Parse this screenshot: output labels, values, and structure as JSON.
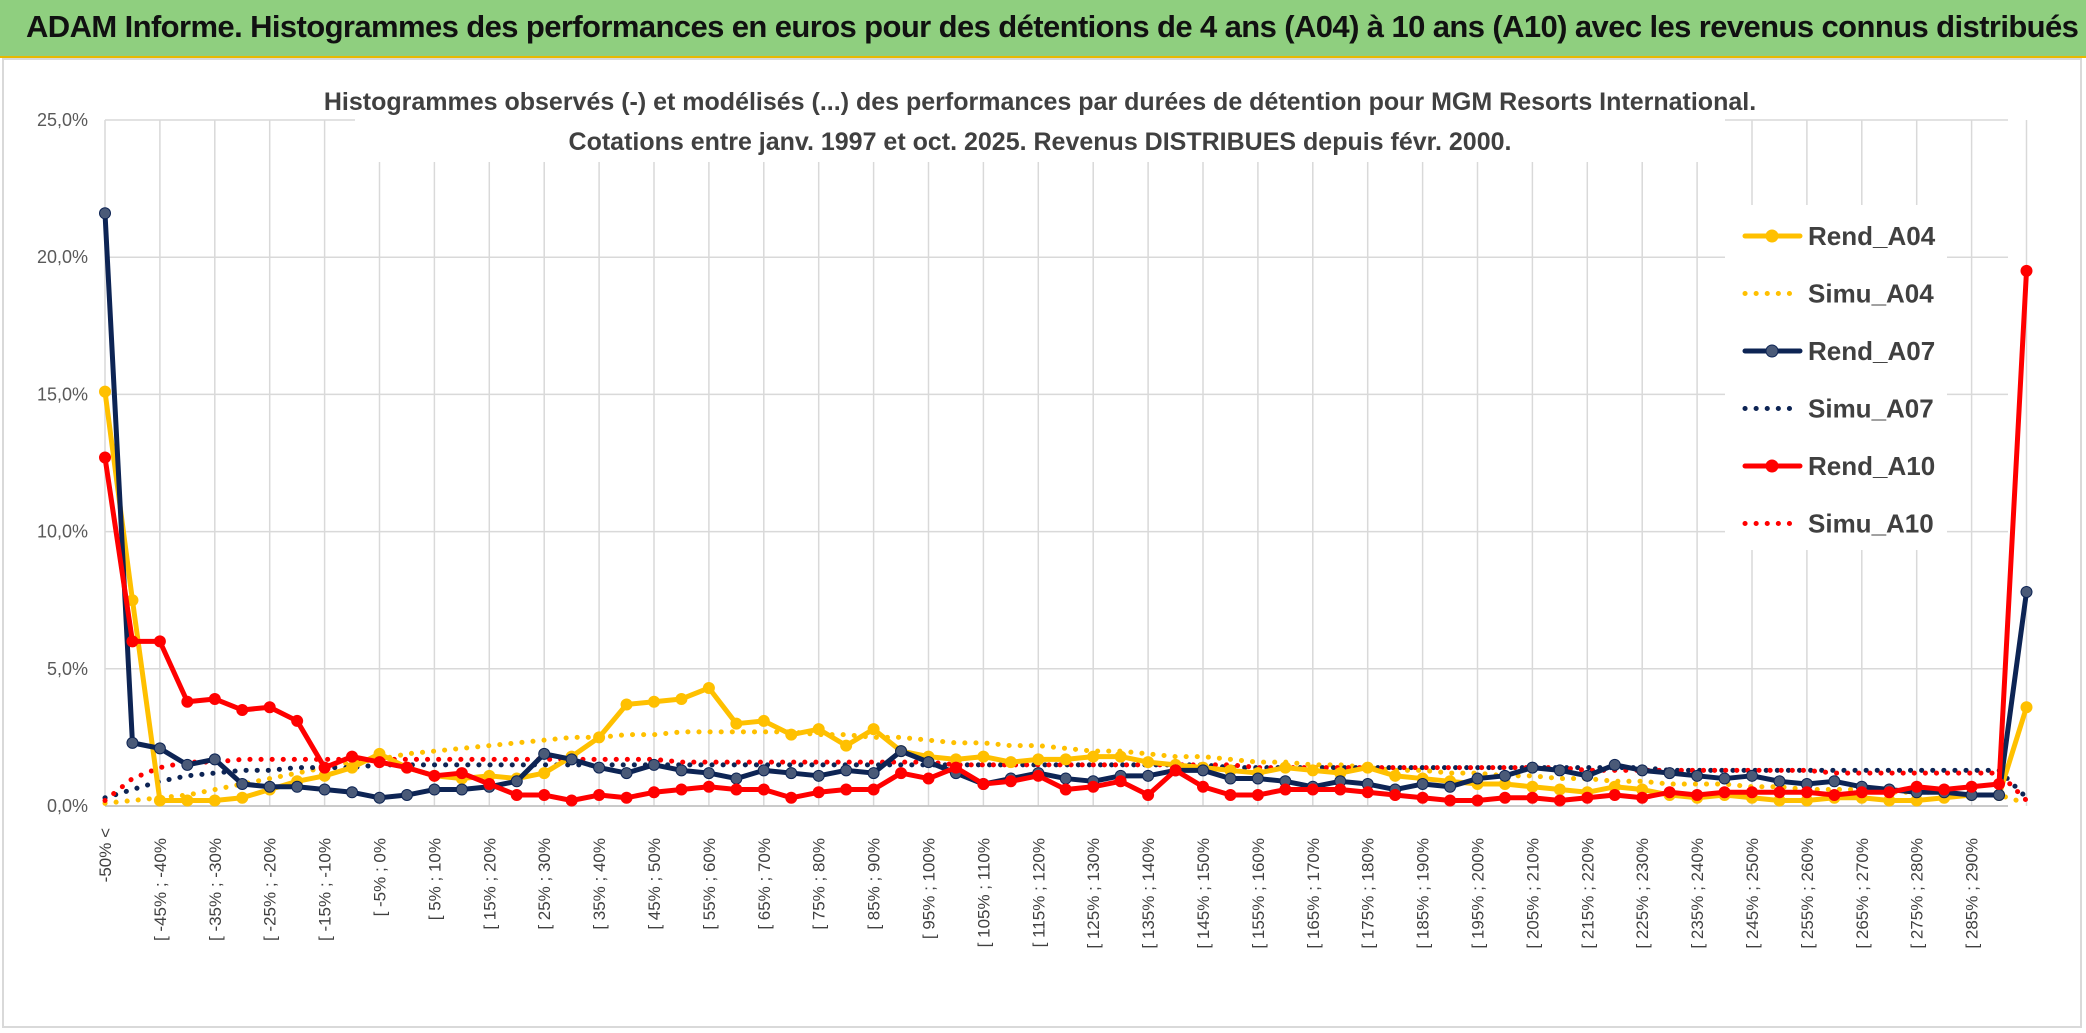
{
  "banner": {
    "title": "ADAM Informe. Histogrammes des performances en euros pour des détentions de 4 ans (A04) à 10 ans (A10) avec les revenus connus distribués"
  },
  "colors": {
    "banner_bg": "#8fcf7f",
    "a04": "#ffc000",
    "a07": "#0d2454",
    "a07_marker": "#4a5a78",
    "a10": "#ff0000",
    "grid": "#d9d9d9"
  },
  "chart_data": {
    "type": "line",
    "title": "Histogrammes observés (-) et modélisés (...) des performances par durées de détention pour MGM Resorts International.",
    "subtitle": "Cotations entre janv. 1997 et oct. 2025. Revenus DISTRIBUES depuis févr. 2000.",
    "y_ticks": [
      "0,0%",
      "5,0%",
      "10,0%",
      "15,0%",
      "20,0%",
      "25,0%"
    ],
    "ylim": [
      0,
      25
    ],
    "x_tick_labels": [
      "-50% <",
      "[ -45% ; -40%",
      "[ -35% ; -30%",
      "[ -25% ; -20%",
      "[ -15% ; -10%",
      "[ -5% ; 0%",
      "[ 5% ; 10%",
      "[ 15% ; 20%",
      "[ 25% ; 30%",
      "[ 35% ; 40%",
      "[ 45% ; 50%",
      "[ 55% ; 60%",
      "[ 65% ; 70%",
      "[ 75% ; 80%",
      "[ 85% ; 90%",
      "[ 95% ; 100%",
      "[ 105% ; 110%",
      "[ 115% ; 120%",
      "[ 125% ; 130%",
      "[ 135% ; 140%",
      "[ 145% ; 150%",
      "[ 155% ; 160%",
      "[ 165% ; 170%",
      "[ 175% ; 180%",
      "[ 185% ; 190%",
      "[ 195% ; 200%",
      "[ 205% ; 210%",
      "[ 215% ; 220%",
      "[ 225% ; 230%",
      "[ 235% ; 240%",
      "[ 245% ; 250%",
      "[ 255% ; 260%",
      "[ 265% ; 270%",
      "[ 275% ; 280%",
      "[ 285% ; 290%"
    ],
    "n_points": 71,
    "legend_position": "right",
    "grid": true,
    "series": [
      {
        "name": "Rend_A04",
        "style": "solid",
        "color": "#ffc000",
        "values": [
          15.1,
          7.5,
          0.2,
          0.2,
          0.2,
          0.3,
          0.6,
          0.9,
          1.1,
          1.4,
          1.9,
          1.4,
          1.1,
          1.0,
          1.1,
          1.0,
          1.2,
          1.8,
          2.5,
          3.7,
          3.8,
          3.9,
          4.3,
          3.0,
          3.1,
          2.6,
          2.8,
          2.2,
          2.8,
          2.0,
          1.8,
          1.7,
          1.8,
          1.6,
          1.7,
          1.7,
          1.8,
          1.8,
          1.6,
          1.5,
          1.4,
          1.3,
          1.2,
          1.4,
          1.3,
          1.2,
          1.4,
          1.1,
          1.0,
          0.9,
          0.8,
          0.8,
          0.7,
          0.6,
          0.5,
          0.7,
          0.6,
          0.4,
          0.3,
          0.4,
          0.3,
          0.2,
          0.2,
          0.3,
          0.3,
          0.2,
          0.2,
          0.3,
          0.4,
          0.4,
          3.6
        ]
      },
      {
        "name": "Simu_A04",
        "style": "dotted",
        "color": "#ffc000",
        "values": [
          0.1,
          0.2,
          0.3,
          0.4,
          0.6,
          0.8,
          1.0,
          1.2,
          1.4,
          1.6,
          1.7,
          1.9,
          2.0,
          2.1,
          2.2,
          2.3,
          2.4,
          2.5,
          2.5,
          2.6,
          2.6,
          2.7,
          2.7,
          2.7,
          2.7,
          2.7,
          2.6,
          2.6,
          2.5,
          2.5,
          2.4,
          2.3,
          2.3,
          2.2,
          2.2,
          2.1,
          2.0,
          2.0,
          1.9,
          1.8,
          1.8,
          1.7,
          1.6,
          1.6,
          1.5,
          1.5,
          1.4,
          1.3,
          1.3,
          1.2,
          1.2,
          1.1,
          1.1,
          1.0,
          1.0,
          0.9,
          0.9,
          0.8,
          0.8,
          0.8,
          0.7,
          0.7,
          0.6,
          0.6,
          0.6,
          0.5,
          0.5,
          0.5,
          0.4,
          0.4,
          0.1
        ]
      },
      {
        "name": "Rend_A07",
        "style": "solid",
        "color": "#0d2454",
        "values": [
          21.6,
          2.3,
          2.1,
          1.5,
          1.7,
          0.8,
          0.7,
          0.7,
          0.6,
          0.5,
          0.3,
          0.4,
          0.6,
          0.6,
          0.7,
          0.9,
          1.9,
          1.7,
          1.4,
          1.2,
          1.5,
          1.3,
          1.2,
          1.0,
          1.3,
          1.2,
          1.1,
          1.3,
          1.2,
          2.0,
          1.6,
          1.2,
          0.8,
          1.0,
          1.2,
          1.0,
          0.9,
          1.1,
          1.1,
          1.3,
          1.3,
          1.0,
          1.0,
          0.9,
          0.7,
          0.9,
          0.8,
          0.6,
          0.8,
          0.7,
          1.0,
          1.1,
          1.4,
          1.3,
          1.1,
          1.5,
          1.3,
          1.2,
          1.1,
          1.0,
          1.1,
          0.9,
          0.8,
          0.9,
          0.7,
          0.6,
          0.5,
          0.5,
          0.4,
          0.4,
          7.8
        ]
      },
      {
        "name": "Simu_A07",
        "style": "dotted",
        "color": "#0d2454",
        "values": [
          0.3,
          0.6,
          0.9,
          1.1,
          1.2,
          1.3,
          1.3,
          1.4,
          1.4,
          1.4,
          1.5,
          1.5,
          1.5,
          1.5,
          1.5,
          1.5,
          1.5,
          1.5,
          1.5,
          1.5,
          1.5,
          1.5,
          1.5,
          1.5,
          1.5,
          1.5,
          1.5,
          1.5,
          1.5,
          1.5,
          1.5,
          1.5,
          1.5,
          1.5,
          1.5,
          1.5,
          1.5,
          1.5,
          1.5,
          1.5,
          1.5,
          1.4,
          1.4,
          1.4,
          1.4,
          1.4,
          1.4,
          1.4,
          1.4,
          1.4,
          1.4,
          1.4,
          1.4,
          1.4,
          1.4,
          1.4,
          1.4,
          1.3,
          1.3,
          1.3,
          1.3,
          1.3,
          1.3,
          1.3,
          1.3,
          1.3,
          1.3,
          1.3,
          1.3,
          1.3,
          0.3
        ]
      },
      {
        "name": "Rend_A10",
        "style": "solid",
        "color": "#ff0000",
        "values": [
          12.7,
          6.0,
          6.0,
          3.8,
          3.9,
          3.5,
          3.6,
          3.1,
          1.4,
          1.8,
          1.6,
          1.4,
          1.1,
          1.2,
          0.8,
          0.4,
          0.4,
          0.2,
          0.4,
          0.3,
          0.5,
          0.6,
          0.7,
          0.6,
          0.6,
          0.3,
          0.5,
          0.6,
          0.6,
          1.2,
          1.0,
          1.4,
          0.8,
          0.9,
          1.1,
          0.6,
          0.7,
          0.9,
          0.4,
          1.3,
          0.7,
          0.4,
          0.4,
          0.6,
          0.6,
          0.6,
          0.5,
          0.4,
          0.3,
          0.2,
          0.2,
          0.3,
          0.3,
          0.2,
          0.3,
          0.4,
          0.3,
          0.5,
          0.4,
          0.5,
          0.5,
          0.5,
          0.5,
          0.4,
          0.5,
          0.5,
          0.7,
          0.6,
          0.7,
          0.8,
          19.5
        ]
      },
      {
        "name": "Simu_A10",
        "style": "dotted",
        "color": "#ff0000",
        "values": [
          0.2,
          1.0,
          1.4,
          1.6,
          1.6,
          1.7,
          1.7,
          1.7,
          1.7,
          1.7,
          1.7,
          1.7,
          1.7,
          1.7,
          1.7,
          1.7,
          1.7,
          1.7,
          1.7,
          1.7,
          1.7,
          1.6,
          1.6,
          1.6,
          1.6,
          1.6,
          1.6,
          1.6,
          1.6,
          1.6,
          1.6,
          1.5,
          1.5,
          1.5,
          1.5,
          1.5,
          1.5,
          1.5,
          1.5,
          1.5,
          1.5,
          1.5,
          1.4,
          1.4,
          1.4,
          1.4,
          1.4,
          1.4,
          1.4,
          1.4,
          1.4,
          1.4,
          1.4,
          1.4,
          1.3,
          1.3,
          1.3,
          1.3,
          1.3,
          1.3,
          1.3,
          1.3,
          1.3,
          1.2,
          1.2,
          1.2,
          1.2,
          1.2,
          1.2,
          1.2,
          0.2
        ]
      }
    ]
  }
}
